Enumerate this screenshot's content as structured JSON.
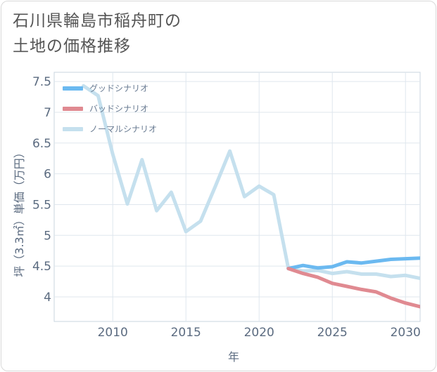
{
  "title_lines": [
    "石川県輪島市稲舟町の",
    "土地の価格推移"
  ],
  "chart_data": {
    "type": "line",
    "xlabel": "年",
    "ylabel": "坪（3.3㎡）単価（万円）",
    "xlim": [
      2006,
      2031
    ],
    "ylim": [
      3.6,
      7.65
    ],
    "x_ticks": [
      2010,
      2015,
      2020,
      2025,
      2030
    ],
    "y_ticks": [
      4,
      4.5,
      5,
      5.5,
      6,
      6.5,
      7,
      7.5
    ],
    "y_tick_labels": [
      "4",
      "4.5",
      "5",
      "5.5",
      "6",
      "6.5",
      "7",
      "7.5"
    ],
    "grid": true,
    "legend_position": "top-left",
    "series": [
      {
        "name": "ノーマルシナリオ",
        "color": "#c5e0ee",
        "x": [
          2008,
          2009,
          2010,
          2011,
          2012,
          2013,
          2014,
          2015,
          2016,
          2017,
          2018,
          2019,
          2020,
          2021,
          2022,
          2023,
          2024,
          2025,
          2026,
          2027,
          2028,
          2029,
          2030,
          2031
        ],
        "y": [
          7.43,
          7.27,
          6.32,
          5.51,
          6.23,
          5.4,
          5.7,
          5.06,
          5.23,
          5.79,
          6.37,
          5.63,
          5.8,
          5.66,
          4.46,
          4.42,
          4.43,
          4.38,
          4.41,
          4.37,
          4.37,
          4.33,
          4.35,
          4.3
        ]
      },
      {
        "name": "グッドシナリオ",
        "color": "#6bb9f0",
        "x": [
          2022,
          2023,
          2024,
          2025,
          2026,
          2027,
          2028,
          2029,
          2030,
          2031
        ],
        "y": [
          4.46,
          4.51,
          4.47,
          4.49,
          4.57,
          4.55,
          4.58,
          4.61,
          4.62,
          4.63
        ]
      },
      {
        "name": "バッドシナリオ",
        "color": "#e08a91",
        "x": [
          2022,
          2023,
          2024,
          2025,
          2026,
          2027,
          2028,
          2029,
          2030,
          2031
        ],
        "y": [
          4.46,
          4.38,
          4.32,
          4.22,
          4.17,
          4.12,
          4.08,
          3.98,
          3.9,
          3.84
        ]
      }
    ],
    "legend": [
      {
        "label": "グッドシナリオ",
        "color": "#6bb9f0"
      },
      {
        "label": "バッドシナリオ",
        "color": "#e08a91"
      },
      {
        "label": "ノーマルシナリオ",
        "color": "#c5e0ee"
      }
    ]
  }
}
